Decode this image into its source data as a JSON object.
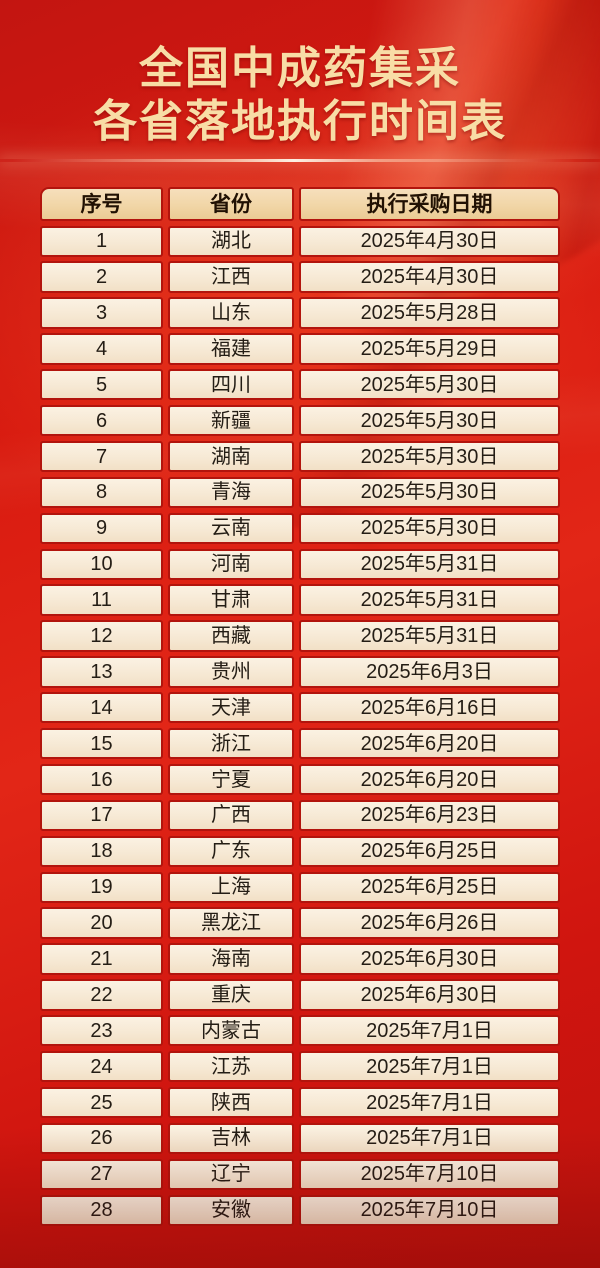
{
  "poster": {
    "title_line1": "全国中成药集采",
    "title_line2": "各省落地执行时间表"
  },
  "table": {
    "headers": [
      "序号",
      "省份",
      "执行采购日期"
    ],
    "rows": [
      [
        "1",
        "湖北",
        "2025年4月30日"
      ],
      [
        "2",
        "江西",
        "2025年4月30日"
      ],
      [
        "3",
        "山东",
        "2025年5月28日"
      ],
      [
        "4",
        "福建",
        "2025年5月29日"
      ],
      [
        "5",
        "四川",
        "2025年5月30日"
      ],
      [
        "6",
        "新疆",
        "2025年5月30日"
      ],
      [
        "7",
        "湖南",
        "2025年5月30日"
      ],
      [
        "8",
        "青海",
        "2025年5月30日"
      ],
      [
        "9",
        "云南",
        "2025年5月30日"
      ],
      [
        "10",
        "河南",
        "2025年5月31日"
      ],
      [
        "11",
        "甘肃",
        "2025年5月31日"
      ],
      [
        "12",
        "西藏",
        "2025年5月31日"
      ],
      [
        "13",
        "贵州",
        "2025年6月3日"
      ],
      [
        "14",
        "天津",
        "2025年6月16日"
      ],
      [
        "15",
        "浙江",
        "2025年6月20日"
      ],
      [
        "16",
        "宁夏",
        "2025年6月20日"
      ],
      [
        "17",
        "广西",
        "2025年6月23日"
      ],
      [
        "18",
        "广东",
        "2025年6月25日"
      ],
      [
        "19",
        "上海",
        "2025年6月25日"
      ],
      [
        "20",
        "黑龙江",
        "2025年6月26日"
      ],
      [
        "21",
        "海南",
        "2025年6月30日"
      ],
      [
        "22",
        "重庆",
        "2025年6月30日"
      ],
      [
        "23",
        "内蒙古",
        "2025年7月1日"
      ],
      [
        "24",
        "江苏",
        "2025年7月1日"
      ],
      [
        "25",
        "陕西",
        "2025年7月1日"
      ],
      [
        "26",
        "吉林",
        "2025年7月1日"
      ],
      [
        "27",
        "辽宁",
        "2025年7月10日"
      ],
      [
        "28",
        "安徽",
        "2025年7月10日"
      ]
    ]
  },
  "colors": {
    "background_red": "#d91b10",
    "border_red": "#b2140d",
    "cell_cream": "#f7ecd9",
    "header_tan": "#f1d6a7",
    "title_gold": "#f8dda6",
    "text_dark": "#241d15"
  }
}
